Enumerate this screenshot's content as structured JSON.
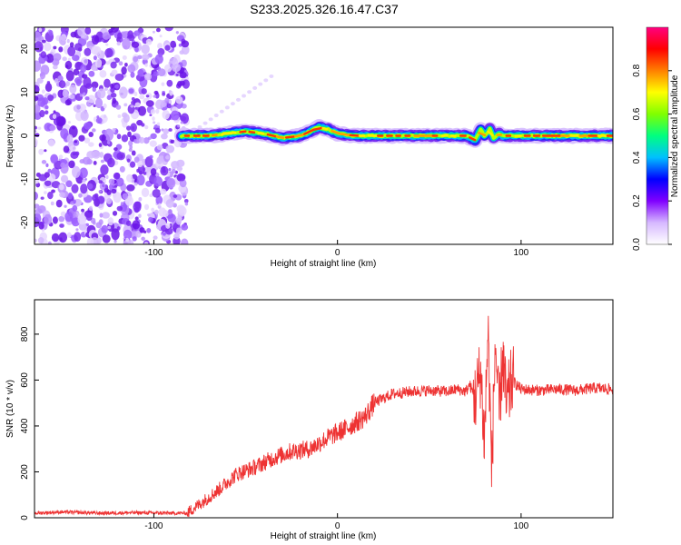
{
  "title": "S233.2025.326.16.47.C37",
  "chart_data": [
    {
      "type": "heatmap",
      "title": "S233.2025.326.16.47.C37",
      "xlabel": "Height of straight line (km)",
      "ylabel": "Frequency (Hz)",
      "xlim": [
        -165,
        150
      ],
      "ylim": [
        -25,
        25
      ],
      "xticks": [
        -100,
        0,
        100
      ],
      "yticks": [
        -20,
        -10,
        0,
        10,
        20
      ],
      "noise_region_x": [
        -165,
        -82
      ],
      "ridge": {
        "description": "narrow band of peak amplitude near 0 Hz",
        "x": [
          -85,
          -70,
          -60,
          -50,
          -40,
          -30,
          -20,
          -15,
          -10,
          -5,
          0,
          10,
          20,
          40,
          60,
          70,
          75,
          78,
          80,
          83,
          85,
          88,
          90,
          100,
          120,
          150
        ],
        "y": [
          0,
          0,
          0.5,
          1,
          0.5,
          -0.5,
          0,
          1,
          2,
          1.5,
          0.5,
          0,
          0,
          0,
          0,
          0,
          -1,
          1.5,
          0,
          1.5,
          -0.5,
          0.5,
          0,
          0,
          0,
          0
        ]
      },
      "colorbar": {
        "label": "Normalized spectral amplitude",
        "range": [
          0,
          1
        ],
        "ticks": [
          "0.0",
          "0.2",
          "0.4",
          "0.6",
          "0.8"
        ],
        "colors": [
          "#ffffff",
          "#d6b8ff",
          "#8000ff",
          "#0000ff",
          "#00c0ff",
          "#00ff80",
          "#80ff00",
          "#ffff00",
          "#ff8000",
          "#ff0000",
          "#ff0080"
        ]
      }
    },
    {
      "type": "line",
      "xlabel": "Height of straight line (km)",
      "ylabel": "SNR (10 * v/v)",
      "xlim": [
        -165,
        150
      ],
      "ylim": [
        0,
        950
      ],
      "xticks": [
        -100,
        0,
        100
      ],
      "yticks": [
        0,
        200,
        400,
        600,
        800
      ],
      "color": "#ee3333",
      "series": [
        {
          "name": "SNR",
          "x": [
            -165,
            -150,
            -130,
            -110,
            -90,
            -82,
            -75,
            -65,
            -55,
            -45,
            -35,
            -25,
            -15,
            -5,
            5,
            15,
            20,
            30,
            40,
            50,
            60,
            65,
            70,
            72,
            75,
            78,
            80,
            82,
            84,
            86,
            88,
            90,
            92,
            95,
            100,
            110,
            120,
            130,
            140,
            150
          ],
          "values": [
            20,
            25,
            20,
            22,
            20,
            20,
            60,
            120,
            190,
            220,
            260,
            290,
            300,
            350,
            390,
            440,
            500,
            540,
            550,
            555,
            550,
            560,
            550,
            580,
            520,
            640,
            330,
            820,
            200,
            780,
            420,
            720,
            480,
            600,
            560,
            555,
            560,
            555,
            565,
            560
          ]
        }
      ]
    }
  ]
}
